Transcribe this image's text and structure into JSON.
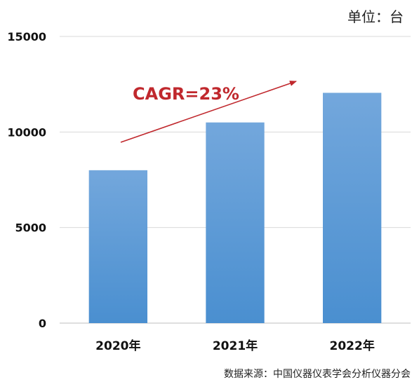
{
  "unit_label": "单位：台",
  "source_label": "数据来源：中国仪器仪表学会分析仪器分会",
  "annotation": {
    "text": "CAGR=23%",
    "color": "#c0282d"
  },
  "colors": {
    "bar_top": "#73a7dc",
    "bar_bottom": "#4a8fd0",
    "grid": "#d9d9d9",
    "axis": "#bfbfbf"
  },
  "chart_data": {
    "type": "bar",
    "categories": [
      "2020年",
      "2021年",
      "2022年"
    ],
    "values": [
      8000,
      10500,
      12050
    ],
    "ylim": [
      0,
      15000
    ],
    "yticks": [
      0,
      5000,
      10000,
      15000
    ],
    "grid": true,
    "title": "",
    "xlabel": "",
    "ylabel": ""
  }
}
